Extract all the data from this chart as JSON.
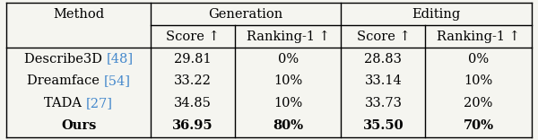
{
  "col_header_row1_method": "Method",
  "col_header_row1_gen": "Generation",
  "col_header_row1_edit": "Editing",
  "col_header_row2": [
    "Score ↑",
    "Ranking-1 ↑",
    "Score ↑",
    "Ranking-1 ↑"
  ],
  "rows": [
    [
      "Describe3D",
      "48",
      "29.81",
      "0%",
      "28.83",
      "0%"
    ],
    [
      "Dreamface",
      "54",
      "33.22",
      "10%",
      "33.14",
      "10%"
    ],
    [
      "TADA",
      "27",
      "34.85",
      "10%",
      "33.73",
      "20%"
    ],
    [
      "Ours",
      "",
      "36.95",
      "80%",
      "35.50",
      "70%"
    ]
  ],
  "bold_last_row": true,
  "citation_color": "#4488CC",
  "background_color": "#f5f5f0",
  "line_color": "#000000",
  "text_color": "#000000",
  "fontsize": 10.5,
  "font_family": "DejaVu Serif"
}
